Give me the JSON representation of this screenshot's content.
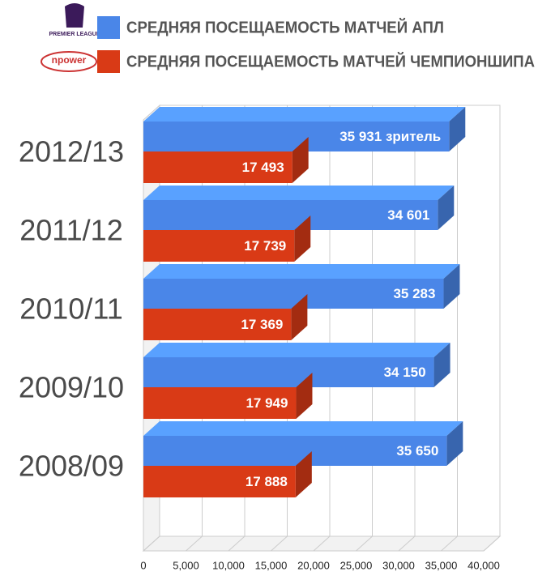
{
  "chart_data": {
    "type": "bar",
    "orientation": "horizontal",
    "logo_texts": [
      "PREMIER LEAGUE",
      "npower"
    ],
    "categories": [
      "2012/13",
      "2011/12",
      "2010/11",
      "2009/10",
      "2008/09"
    ],
    "series": [
      {
        "name": "СРЕДНЯЯ ПОСЕЩАЕМОСТЬ МАТЧЕЙ АПЛ",
        "color": "#4a86e8",
        "values": [
          35931,
          34601,
          35283,
          34150,
          35650
        ],
        "value_labels": [
          "35 931 зритель",
          "34 601",
          "35 283",
          "34 150",
          "35 650"
        ]
      },
      {
        "name": "СРЕДНЯЯ ПОСЕЩАЕМОСТЬ МАТЧЕЙ ЧЕМПИОНШИПА",
        "color": "#d93a16",
        "values": [
          17493,
          17739,
          17369,
          17949,
          17888
        ],
        "value_labels": [
          "17 493",
          "17 739",
          "17 369",
          "17 949",
          "17 888"
        ]
      }
    ],
    "xlim": [
      0,
      40000
    ],
    "xticks": [
      0,
      {
        "value": 5000,
        "label": "5,000"
      },
      {
        "value": 10000,
        "label": "10,000"
      },
      {
        "value": 15000,
        "label": "15,000"
      },
      {
        "value": 20000,
        "label": "20,000"
      },
      {
        "value": 25000,
        "label": "25,000"
      },
      {
        "value": 30000,
        "label": "30,000"
      },
      {
        "value": 35000,
        "label": "35,000"
      },
      {
        "value": 40000,
        "label": "40,000"
      }
    ],
    "grid": true
  }
}
